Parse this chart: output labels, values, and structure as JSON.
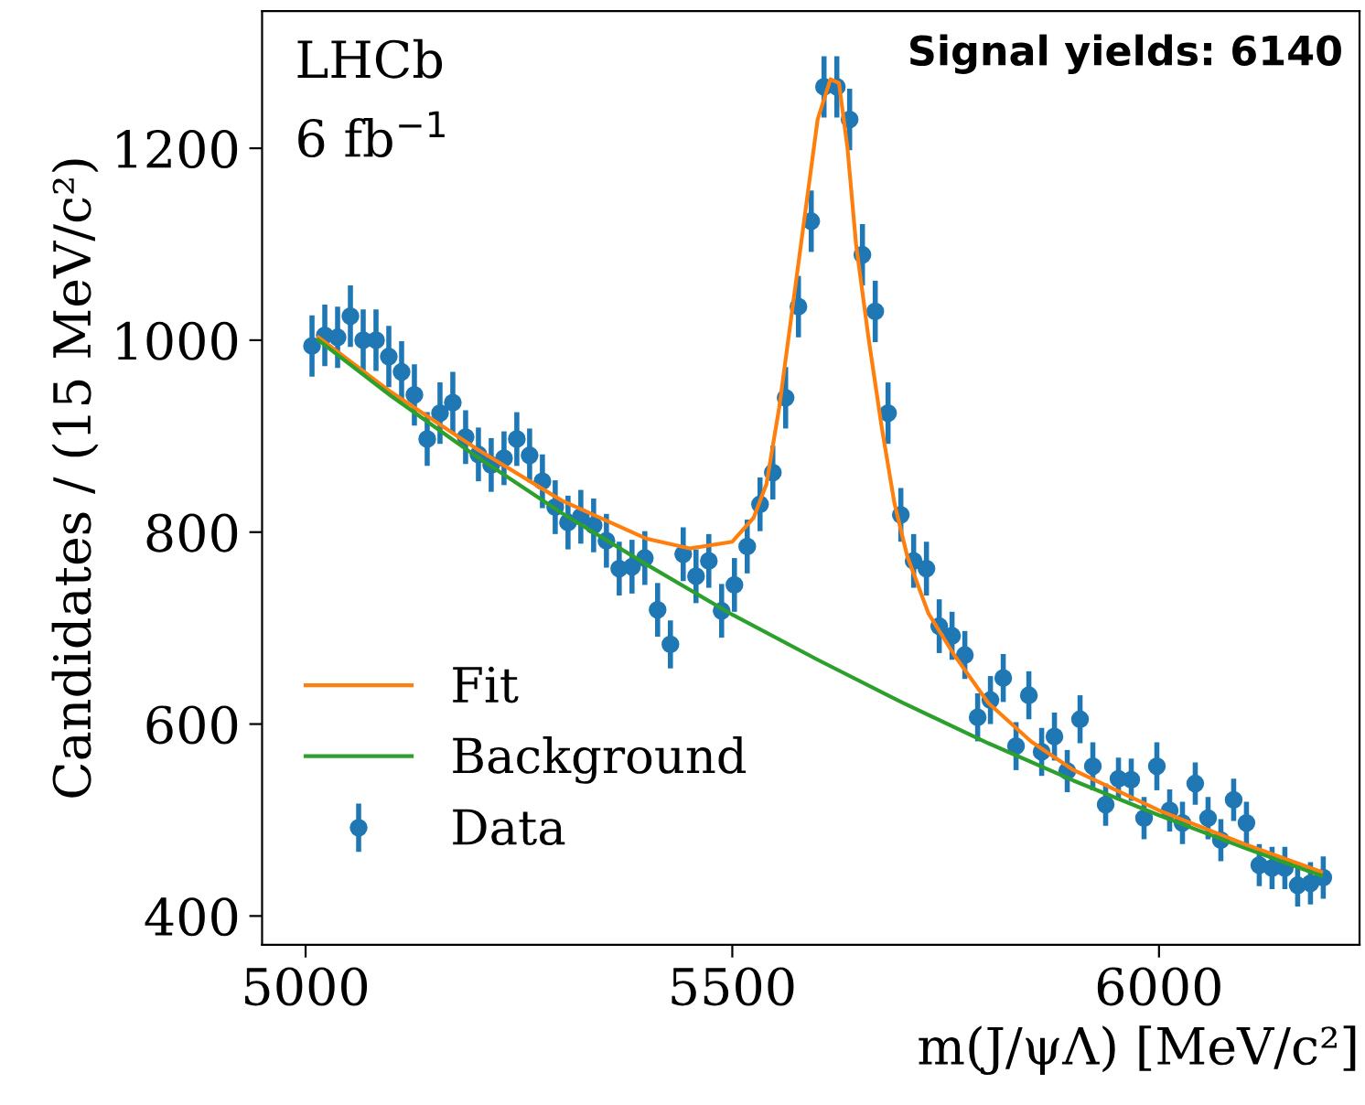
{
  "chart_data": {
    "type": "scatter",
    "xlabel": "m(J/ψΛ) [MeV/c²]",
    "ylabel": "Candidates / (15 MeV/c²)",
    "annotations": [
      "LHCb",
      "6 fb$^{−1}$",
      "Signal yields: 6140"
    ],
    "xlim": [
      4949,
      6235
    ],
    "ylim": [
      370,
      1343
    ],
    "xticks": [
      5000,
      5500,
      6000
    ],
    "yticks": [
      400,
      600,
      800,
      1000,
      1200
    ],
    "grid": false,
    "legend": "bottom left",
    "series": [
      {
        "name": "Fit",
        "type": "line",
        "color": "#ff7f0e",
        "x": [
          5015,
          5100,
          5200,
          5300,
          5400,
          5450,
          5500,
          5525,
          5540,
          5555,
          5570,
          5585,
          5600,
          5615,
          5625,
          5635,
          5645,
          5660,
          5675,
          5690,
          5705,
          5730,
          5760,
          5800,
          5850,
          5900,
          6000,
          6100,
          6190
        ],
        "values": [
          1003,
          946,
          887,
          833,
          793,
          783,
          790,
          815,
          850,
          930,
          1030,
          1130,
          1230,
          1272,
          1268,
          1200,
          1100,
          1000,
          910,
          830,
          775,
          715,
          672,
          622,
          582,
          552,
          510,
          475,
          446
        ]
      },
      {
        "name": "Background",
        "type": "line",
        "color": "#2ca02c",
        "x": [
          5015,
          5100,
          5200,
          5300,
          5400,
          5500,
          5600,
          5700,
          5800,
          5900,
          6000,
          6100,
          6190
        ],
        "values": [
          1000,
          942,
          879,
          820,
          766,
          714,
          667,
          622,
          580,
          541,
          505,
          471,
          442
        ]
      },
      {
        "name": "Data",
        "marker": "circle",
        "color": "#1f77b4",
        "x": [
          5007.5,
          5022.5,
          5037.5,
          5052.5,
          5067.5,
          5082.5,
          5097.5,
          5112.5,
          5127.5,
          5142.5,
          5157.5,
          5172.5,
          5187.5,
          5202.5,
          5217.5,
          5232.5,
          5247.5,
          5262.5,
          5277.5,
          5292.5,
          5307.5,
          5322.5,
          5337.5,
          5352.5,
          5367.5,
          5382.5,
          5397.5,
          5412.5,
          5427.5,
          5442.5,
          5457.5,
          5472.5,
          5487.5,
          5502.5,
          5517.5,
          5532.5,
          5547.5,
          5562.5,
          5577.5,
          5592.5,
          5607.5,
          5622.5,
          5637.5,
          5652.5,
          5667.5,
          5682.5,
          5697.5,
          5712.5,
          5727.5,
          5742.5,
          5757.5,
          5772.5,
          5787.5,
          5802.5,
          5817.5,
          5832.5,
          5847.5,
          5862.5,
          5877.5,
          5892.5,
          5907.5,
          5922.5,
          5937.5,
          5952.5,
          5967.5,
          5982.5,
          5997.5,
          6012.5,
          6027.5,
          6042.5,
          6057.5,
          6072.5,
          6087.5,
          6102.5,
          6117.5,
          6132.5,
          6147.5,
          6162.5,
          6177.5,
          6192.5
        ],
        "values": [
          994,
          1005,
          1003,
          1025,
          1000,
          1000,
          983,
          967,
          943,
          897,
          924,
          935,
          899,
          881,
          870,
          877,
          897,
          880,
          853,
          826,
          810,
          816,
          807,
          791,
          762,
          764,
          773,
          719,
          683,
          777,
          754,
          770,
          718,
          745,
          785,
          829,
          862,
          940,
          1035,
          1124,
          1264,
          1264,
          1230,
          1089,
          1030,
          924,
          818,
          770,
          762,
          702,
          692,
          672,
          607,
          625,
          648,
          577,
          630,
          571,
          587,
          551,
          605,
          556,
          516,
          543,
          542,
          502,
          556,
          510,
          497,
          538,
          502,
          479,
          521,
          497,
          453,
          450,
          450,
          432,
          434,
          440
        ],
        "errors": [
          32,
          32,
          32,
          32,
          32,
          32,
          32,
          32,
          32,
          28,
          32,
          32,
          28,
          28,
          28,
          28,
          28,
          28,
          28,
          28,
          28,
          28,
          28,
          28,
          28,
          28,
          28,
          28,
          25,
          28,
          28,
          28,
          28,
          28,
          28,
          28,
          28,
          32,
          32,
          32,
          32,
          32,
          32,
          32,
          32,
          32,
          28,
          28,
          28,
          28,
          25,
          25,
          25,
          25,
          25,
          25,
          25,
          25,
          25,
          22,
          25,
          25,
          22,
          22,
          22,
          22,
          25,
          22,
          22,
          22,
          22,
          22,
          22,
          22,
          22,
          22,
          22,
          22,
          22,
          22
        ]
      }
    ]
  }
}
